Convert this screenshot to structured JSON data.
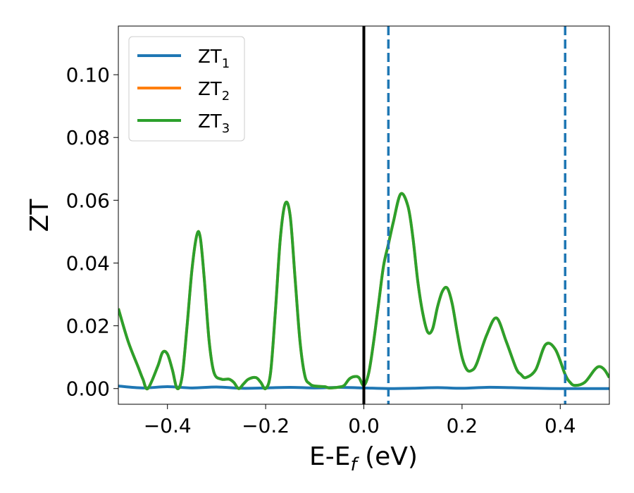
{
  "chart_data": {
    "type": "line",
    "xlabel": "E-E",
    "xlabel_sub": "f",
    "xlabel_unit": " (eV)",
    "ylabel": "ZT",
    "xlim": [
      -0.5,
      0.5
    ],
    "ylim": [
      -0.005,
      0.1155
    ],
    "xticks": [
      -0.4,
      -0.2,
      0.0,
      0.2,
      0.4
    ],
    "xtick_labels": [
      "−0.4",
      "−0.2",
      "0.0",
      "0.2",
      "0.4"
    ],
    "yticks": [
      0.0,
      0.02,
      0.04,
      0.06,
      0.08,
      0.1
    ],
    "ytick_labels": [
      "0.00",
      "0.02",
      "0.04",
      "0.06",
      "0.08",
      "0.10"
    ],
    "grid": false,
    "legend_position": "top-left",
    "series": [
      {
        "name": "ZT",
        "name_sub": "1",
        "color": "#1f77b4",
        "x": [
          -0.5,
          -0.45,
          -0.4,
          -0.35,
          -0.3,
          -0.25,
          -0.2,
          -0.15,
          -0.1,
          -0.05,
          0.0,
          0.05,
          0.1,
          0.15,
          0.2,
          0.25,
          0.3,
          0.35,
          0.4,
          0.45,
          0.5
        ],
        "y": [
          0.0008,
          0.0002,
          0.0006,
          0.0002,
          0.0005,
          0.0001,
          0.0002,
          0.0004,
          0.0002,
          0.0004,
          0.0002,
          0.0,
          0.0001,
          0.0003,
          0.0001,
          0.0004,
          0.0003,
          0.0001,
          0.0,
          0.0,
          0.0
        ]
      },
      {
        "name": "ZT",
        "name_sub": "2",
        "color": "#ff7f0e",
        "x": [
          -0.5,
          -0.48,
          -0.46,
          -0.45,
          -0.44,
          -0.42,
          -0.41,
          -0.4,
          -0.39,
          -0.38,
          -0.37,
          -0.36,
          -0.35,
          -0.34,
          -0.333,
          -0.325,
          -0.315,
          -0.305,
          -0.29,
          -0.275,
          -0.265,
          -0.255,
          -0.245,
          -0.235,
          -0.22,
          -0.21,
          -0.2,
          -0.19,
          -0.18,
          -0.17,
          -0.16,
          -0.15,
          -0.14,
          -0.13,
          -0.12,
          -0.11,
          -0.1,
          -0.08,
          -0.07,
          -0.05,
          -0.04,
          -0.03,
          -0.02,
          -0.01,
          0.0,
          0.01,
          0.02,
          0.03,
          0.04,
          0.05,
          0.06,
          0.075,
          0.09,
          0.1,
          0.11,
          0.12,
          0.13,
          0.14,
          0.15,
          0.16,
          0.17,
          0.18,
          0.19,
          0.2,
          0.21,
          0.22,
          0.23,
          0.25,
          0.27,
          0.29,
          0.31,
          0.32,
          0.33,
          0.35,
          0.37,
          0.39,
          0.41,
          0.42,
          0.43,
          0.45,
          0.47,
          0.48,
          0.49,
          0.5
        ],
        "y": [
          0.0255,
          0.015,
          0.007,
          0.003,
          0.0,
          0.007,
          0.0115,
          0.011,
          0.006,
          0.0,
          0.004,
          0.02,
          0.038,
          0.049,
          0.048,
          0.035,
          0.015,
          0.005,
          0.003,
          0.003,
          0.002,
          0.0,
          0.0015,
          0.003,
          0.0035,
          0.002,
          0.0,
          0.005,
          0.025,
          0.048,
          0.059,
          0.055,
          0.035,
          0.015,
          0.004,
          0.0015,
          0.0008,
          0.0006,
          0.0002,
          0.0005,
          0.001,
          0.003,
          0.0038,
          0.0035,
          0.001,
          0.005,
          0.015,
          0.027,
          0.039,
          0.046,
          0.053,
          0.062,
          0.058,
          0.048,
          0.034,
          0.024,
          0.018,
          0.019,
          0.026,
          0.031,
          0.032,
          0.027,
          0.018,
          0.01,
          0.006,
          0.0058,
          0.008,
          0.017,
          0.0225,
          0.015,
          0.0065,
          0.0045,
          0.0035,
          0.006,
          0.014,
          0.0125,
          0.0045,
          0.002,
          0.001,
          0.002,
          0.006,
          0.007,
          0.006,
          0.0035
        ]
      },
      {
        "name": "ZT",
        "name_sub": "3",
        "color": "#2ca02c",
        "x": [
          -0.5,
          -0.48,
          -0.46,
          -0.45,
          -0.44,
          -0.42,
          -0.41,
          -0.4,
          -0.39,
          -0.38,
          -0.37,
          -0.36,
          -0.35,
          -0.34,
          -0.333,
          -0.325,
          -0.315,
          -0.305,
          -0.29,
          -0.275,
          -0.265,
          -0.255,
          -0.245,
          -0.235,
          -0.22,
          -0.21,
          -0.2,
          -0.19,
          -0.18,
          -0.17,
          -0.16,
          -0.15,
          -0.14,
          -0.13,
          -0.12,
          -0.11,
          -0.1,
          -0.08,
          -0.07,
          -0.05,
          -0.04,
          -0.03,
          -0.02,
          -0.01,
          0.0,
          0.01,
          0.02,
          0.03,
          0.04,
          0.05,
          0.06,
          0.075,
          0.09,
          0.1,
          0.11,
          0.12,
          0.13,
          0.14,
          0.15,
          0.16,
          0.17,
          0.18,
          0.19,
          0.2,
          0.21,
          0.22,
          0.23,
          0.25,
          0.27,
          0.29,
          0.31,
          0.32,
          0.33,
          0.35,
          0.37,
          0.39,
          0.41,
          0.42,
          0.43,
          0.45,
          0.47,
          0.48,
          0.49,
          0.5
        ],
        "y": [
          0.0255,
          0.015,
          0.007,
          0.003,
          0.0,
          0.007,
          0.0115,
          0.011,
          0.006,
          0.0,
          0.004,
          0.02,
          0.038,
          0.049,
          0.048,
          0.035,
          0.015,
          0.005,
          0.003,
          0.003,
          0.002,
          0.0,
          0.0015,
          0.003,
          0.0035,
          0.002,
          0.0,
          0.005,
          0.025,
          0.048,
          0.059,
          0.055,
          0.035,
          0.015,
          0.004,
          0.0015,
          0.0008,
          0.0006,
          0.0002,
          0.0005,
          0.001,
          0.003,
          0.0038,
          0.0035,
          0.001,
          0.005,
          0.015,
          0.027,
          0.039,
          0.046,
          0.053,
          0.062,
          0.058,
          0.048,
          0.034,
          0.024,
          0.018,
          0.019,
          0.026,
          0.031,
          0.032,
          0.027,
          0.018,
          0.01,
          0.006,
          0.0058,
          0.008,
          0.017,
          0.0225,
          0.015,
          0.0065,
          0.0045,
          0.0035,
          0.006,
          0.014,
          0.0125,
          0.0045,
          0.002,
          0.001,
          0.002,
          0.006,
          0.007,
          0.006,
          0.0035
        ]
      }
    ],
    "vlines": [
      {
        "x": 0.0,
        "style": "solid",
        "color": "#000000"
      },
      {
        "x": 0.05,
        "style": "dashed",
        "color": "#1f77b4"
      },
      {
        "x": 0.41,
        "style": "dashed",
        "color": "#1f77b4"
      }
    ]
  }
}
